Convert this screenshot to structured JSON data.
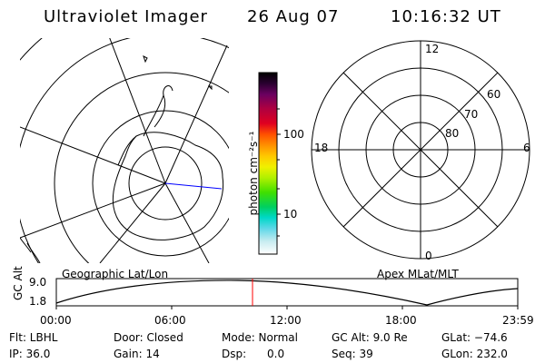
{
  "header": {
    "instrument": "Ultraviolet Imager",
    "date": "26 Aug 07",
    "time": "10:16:32 UT"
  },
  "left_map": {
    "label": "Geographic Lat/Lon"
  },
  "right_map": {
    "label": "Apex MLat/MLT",
    "mlt_labels": {
      "top": "12",
      "left": "18",
      "right": "6",
      "bottom": "0"
    },
    "lat_labels": [
      "60",
      "70",
      "80"
    ]
  },
  "colorbar": {
    "unit_label": "photon cm⁻²s⁻¹",
    "ticks": [
      "100",
      "10"
    ],
    "colors": [
      "#000000",
      "#2a0030",
      "#5a0060",
      "#8a0060",
      "#c00040",
      "#e00020",
      "#ff3000",
      "#ff8c00",
      "#ffc000",
      "#ffe800",
      "#d0f000",
      "#90e800",
      "#40e000",
      "#00d040",
      "#00d8c0",
      "#40d0e0",
      "#a0e0e8",
      "#d8eef2",
      "#ffffff"
    ]
  },
  "altitude_plot": {
    "ylabel": "GC Alt",
    "yticks": [
      "9.0",
      "1.8"
    ],
    "xticks": [
      "00:00",
      "06:00",
      "12:00",
      "18:00",
      "23:59"
    ]
  },
  "footer": {
    "row1": [
      "Flt: LBHL",
      "Door: Closed",
      "Mode: Normal",
      "GC Alt: 9.0 Re",
      "GLat: −74.6"
    ],
    "row2": [
      "IP: 36.0",
      "Gain: 14",
      "Dsp:      0.0",
      "Seq: 39",
      "GLon: 232.0"
    ]
  }
}
